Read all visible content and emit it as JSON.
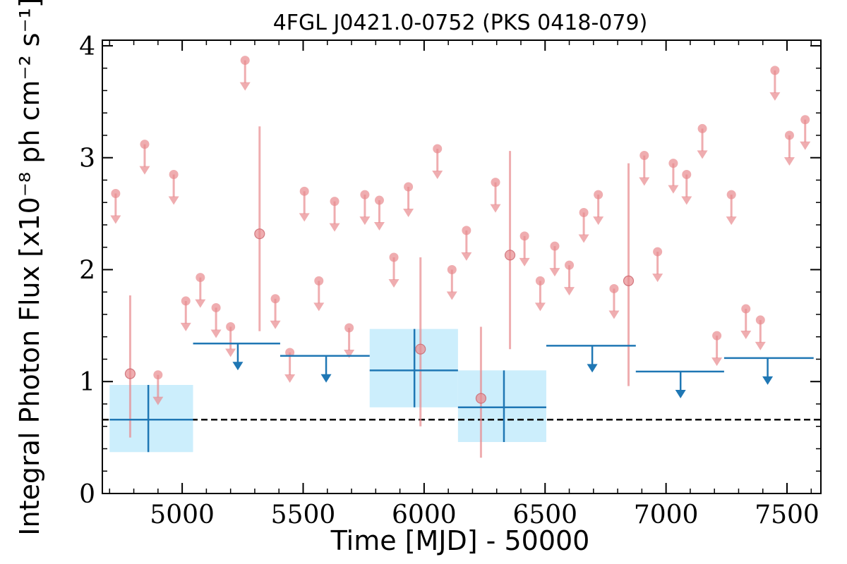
{
  "chart_data": {
    "type": "scatter",
    "title": "4FGL J0421.0-0752 (PKS 0418-079)",
    "xlabel": "Time [MJD] - 50000",
    "ylabel": "Integral Photon Flux [x10⁻⁸ ph cm⁻² s⁻¹]",
    "xlim": [
      4670,
      7640
    ],
    "ylim": [
      0,
      4.05
    ],
    "x_ticks": [
      5000,
      5500,
      6000,
      6500,
      7000,
      7500
    ],
    "y_ticks": [
      0,
      1,
      2,
      3,
      4
    ],
    "grid": false,
    "baseline": 0.66,
    "colors": {
      "short_bins": "#e88a8f",
      "long_bins": "#1f77b4",
      "uncertainty_band": "#cceefc",
      "baseline": "#000000"
    },
    "short_detections": [
      {
        "x": 4785,
        "y": 1.07,
        "y_low": 0.5,
        "y_high": 1.77
      },
      {
        "x": 5320,
        "y": 2.32,
        "y_low": 1.45,
        "y_high": 3.28
      },
      {
        "x": 5985,
        "y": 1.29,
        "y_low": 0.6,
        "y_high": 2.11
      },
      {
        "x": 6235,
        "y": 0.85,
        "y_low": 0.32,
        "y_high": 1.49
      },
      {
        "x": 6355,
        "y": 2.13,
        "y_low": 1.29,
        "y_high": 3.06
      },
      {
        "x": 6845,
        "y": 1.9,
        "y_low": 0.96,
        "y_high": 2.95
      }
    ],
    "short_upper_limits": [
      {
        "x": 4725,
        "y": 2.68
      },
      {
        "x": 4845,
        "y": 3.12
      },
      {
        "x": 4900,
        "y": 1.06
      },
      {
        "x": 4965,
        "y": 2.85
      },
      {
        "x": 5015,
        "y": 1.72
      },
      {
        "x": 5075,
        "y": 1.93
      },
      {
        "x": 5140,
        "y": 1.66
      },
      {
        "x": 5200,
        "y": 1.49
      },
      {
        "x": 5260,
        "y": 3.87
      },
      {
        "x": 5385,
        "y": 1.74
      },
      {
        "x": 5445,
        "y": 1.26
      },
      {
        "x": 5505,
        "y": 2.7
      },
      {
        "x": 5565,
        "y": 1.9
      },
      {
        "x": 5630,
        "y": 2.61
      },
      {
        "x": 5690,
        "y": 1.48
      },
      {
        "x": 5755,
        "y": 2.67
      },
      {
        "x": 5815,
        "y": 2.62
      },
      {
        "x": 5875,
        "y": 2.11
      },
      {
        "x": 5935,
        "y": 2.74
      },
      {
        "x": 6055,
        "y": 3.08
      },
      {
        "x": 6115,
        "y": 2.0
      },
      {
        "x": 6175,
        "y": 2.35
      },
      {
        "x": 6295,
        "y": 2.78
      },
      {
        "x": 6415,
        "y": 2.3
      },
      {
        "x": 6480,
        "y": 1.9
      },
      {
        "x": 6540,
        "y": 2.21
      },
      {
        "x": 6600,
        "y": 2.04
      },
      {
        "x": 6660,
        "y": 2.51
      },
      {
        "x": 6720,
        "y": 2.67
      },
      {
        "x": 6785,
        "y": 1.83
      },
      {
        "x": 6910,
        "y": 3.02
      },
      {
        "x": 6965,
        "y": 2.16
      },
      {
        "x": 7030,
        "y": 2.95
      },
      {
        "x": 7085,
        "y": 2.85
      },
      {
        "x": 7150,
        "y": 3.26
      },
      {
        "x": 7210,
        "y": 1.41
      },
      {
        "x": 7270,
        "y": 2.67
      },
      {
        "x": 7330,
        "y": 1.65
      },
      {
        "x": 7390,
        "y": 1.55
      },
      {
        "x": 7450,
        "y": 3.78
      },
      {
        "x": 7510,
        "y": 3.2
      },
      {
        "x": 7575,
        "y": 3.34
      }
    ],
    "long_detections": [
      {
        "x": 4860,
        "x_low": 4700,
        "x_high": 5045,
        "y": 0.66,
        "y_low": 0.37,
        "y_high": 0.97
      },
      {
        "x": 5960,
        "x_low": 5775,
        "x_high": 6140,
        "y": 1.1,
        "y_low": 0.77,
        "y_high": 1.47
      },
      {
        "x": 6330,
        "x_low": 6140,
        "x_high": 6505,
        "y": 0.77,
        "y_low": 0.46,
        "y_high": 1.1
      }
    ],
    "long_upper_limits": [
      {
        "x": 5230,
        "x_low": 5045,
        "x_high": 5405,
        "y": 1.34
      },
      {
        "x": 5595,
        "x_low": 5405,
        "x_high": 5775,
        "y": 1.23
      },
      {
        "x": 6695,
        "x_low": 6505,
        "x_high": 6875,
        "y": 1.32
      },
      {
        "x": 7060,
        "x_low": 6875,
        "x_high": 7240,
        "y": 1.09
      },
      {
        "x": 7420,
        "x_low": 7240,
        "x_high": 7610,
        "y": 1.21
      }
    ]
  }
}
